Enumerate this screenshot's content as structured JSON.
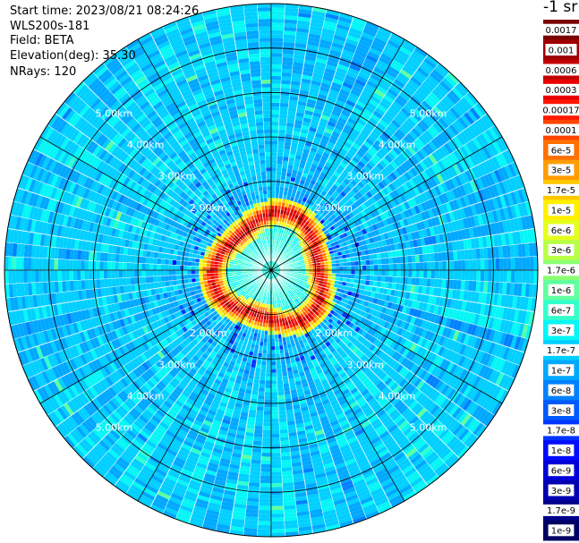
{
  "header": {
    "start_time": "Start time: 2023/08/21 08:24:26",
    "instrument": "WLS200s-181",
    "field": "Field: BETA",
    "elevation": "Elevation(deg): 35.30",
    "nrays": "NRays: 120"
  },
  "colorbar": {
    "unit_label": "-1 sr",
    "tick_labels": [
      "0.0017",
      "0.001",
      "0.0006",
      "0.0003",
      "0.00017",
      "0.0001",
      "6e-5",
      "3e-5",
      "1.7e-5",
      "1e-5",
      "6e-6",
      "3e-6",
      "1.7e-6",
      "1e-6",
      "6e-7",
      "3e-7",
      "1.7e-7",
      "1e-7",
      "6e-8",
      "3e-8",
      "1.7e-8",
      "1e-8",
      "6e-9",
      "3e-9",
      "1.7e-9",
      "1e-9"
    ],
    "colors": [
      "#7a0000",
      "#9e0000",
      "#c40000",
      "#ea0000",
      "#ff1800",
      "#ff4400",
      "#ff7000",
      "#ff9c00",
      "#ffc800",
      "#fff000",
      "#e6ff1c",
      "#b9ff47",
      "#8cff73",
      "#60ff9f",
      "#33ffcb",
      "#06f6f6",
      "#00cfff",
      "#00a8ff",
      "#0081ff",
      "#005aff",
      "#0033ff",
      "#000cff",
      "#0000d9",
      "#0000b2",
      "#00008b",
      "#000064"
    ]
  },
  "chart_data": {
    "type": "heatmap",
    "projection": "polar (PPI scan)",
    "field": "BETA",
    "elevation_deg": 35.3,
    "n_rays": 120,
    "range_ring_labels": [
      "2.00km",
      "3.00km",
      "4.00km",
      "5.00km"
    ],
    "range_rings_km": [
      1,
      2,
      3,
      4,
      5,
      6
    ],
    "max_range_km": 6.0,
    "colorscale": "log10 BETA (sr-1 m-1), 1e-9 to 0.0017",
    "value_range": [
      1e-09,
      0.0017
    ],
    "spokes": 12,
    "dominant_band": "1e-7 to 1e-6 (cyan / light blue) across most of the disc",
    "near_field_band": "1e-8 to 1e-7 (blue) within ~2 km, with speckle",
    "feature_ring": {
      "description": "high-backscatter ring (6e-6 to 1e-4, yellow to red) around center",
      "approx_range_km": 1.2
    }
  }
}
